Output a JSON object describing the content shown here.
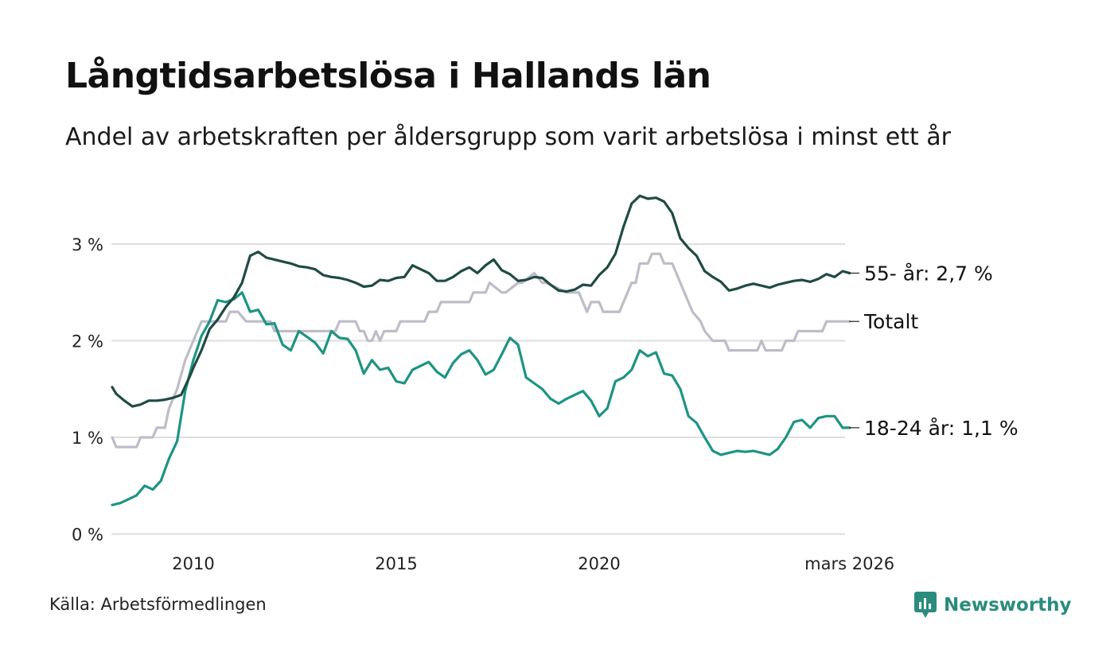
{
  "chart_data": {
    "type": "line",
    "title": "Långtidsarbetslösa i Hallands län",
    "subtitle": "Andel av arbetskraften per åldersgrupp som varit arbetslösa i minst ett år",
    "xlabel": "",
    "ylabel": "",
    "xlim": [
      2008.0,
      2026.2
    ],
    "ylim": [
      0,
      3.6
    ],
    "y_ticks": [
      {
        "value": 0,
        "label": "0 %"
      },
      {
        "value": 1,
        "label": "1 %"
      },
      {
        "value": 2,
        "label": "2 %"
      },
      {
        "value": 3,
        "label": "3 %"
      }
    ],
    "x_ticks": [
      {
        "value": 2010,
        "label": "2010"
      },
      {
        "value": 2015,
        "label": "2015"
      },
      {
        "value": 2020,
        "label": "2020"
      },
      {
        "value": 2026.17,
        "label": "mars 2026"
      }
    ],
    "grid": true,
    "series": [
      {
        "name": "55- år",
        "end_label": "55- år: 2,7 %",
        "color": "#1f4b43",
        "x": [
          2008.0,
          2008.1,
          2008.3,
          2008.5,
          2008.7,
          2008.9,
          2009.1,
          2009.3,
          2009.5,
          2009.7,
          2009.9,
          2010.0,
          2010.2,
          2010.4,
          2010.6,
          2010.8,
          2011.0,
          2011.2,
          2011.4,
          2011.6,
          2011.8,
          2012.0,
          2012.2,
          2012.4,
          2012.6,
          2012.8,
          2013.0,
          2013.2,
          2013.4,
          2013.6,
          2013.8,
          2014.0,
          2014.2,
          2014.4,
          2014.6,
          2014.8,
          2015.0,
          2015.2,
          2015.4,
          2015.6,
          2015.8,
          2016.0,
          2016.2,
          2016.4,
          2016.6,
          2016.8,
          2017.0,
          2017.2,
          2017.4,
          2017.6,
          2017.8,
          2018.0,
          2018.2,
          2018.4,
          2018.6,
          2018.8,
          2019.0,
          2019.2,
          2019.4,
          2019.6,
          2019.8,
          2020.0,
          2020.2,
          2020.4,
          2020.6,
          2020.8,
          2021.0,
          2021.2,
          2021.4,
          2021.6,
          2021.8,
          2022.0,
          2022.2,
          2022.4,
          2022.6,
          2022.8,
          2023.0,
          2023.2,
          2023.4,
          2023.6,
          2023.8,
          2024.0,
          2024.2,
          2024.4,
          2024.6,
          2024.8,
          2025.0,
          2025.2,
          2025.4,
          2025.6,
          2025.8,
          2026.0,
          2026.17
        ],
        "values": [
          1.52,
          1.45,
          1.38,
          1.32,
          1.34,
          1.38,
          1.38,
          1.39,
          1.41,
          1.44,
          1.62,
          1.72,
          1.9,
          2.12,
          2.22,
          2.35,
          2.45,
          2.6,
          2.88,
          2.92,
          2.86,
          2.84,
          2.82,
          2.8,
          2.77,
          2.76,
          2.74,
          2.68,
          2.66,
          2.65,
          2.63,
          2.6,
          2.56,
          2.57,
          2.63,
          2.62,
          2.65,
          2.66,
          2.78,
          2.74,
          2.7,
          2.62,
          2.62,
          2.66,
          2.72,
          2.76,
          2.7,
          2.78,
          2.84,
          2.73,
          2.69,
          2.62,
          2.63,
          2.66,
          2.65,
          2.58,
          2.52,
          2.51,
          2.53,
          2.58,
          2.57,
          2.68,
          2.76,
          2.9,
          3.18,
          3.42,
          3.5,
          3.47,
          3.48,
          3.44,
          3.32,
          3.06,
          2.96,
          2.88,
          2.72,
          2.66,
          2.61,
          2.52,
          2.54,
          2.57,
          2.59,
          2.57,
          2.55,
          2.58,
          2.6,
          2.62,
          2.63,
          2.61,
          2.64,
          2.69,
          2.66,
          2.72,
          2.7
        ]
      },
      {
        "name": "Totalt",
        "end_label": "Totalt",
        "color": "#bfbcc9",
        "x": [
          2008.0,
          2008.1,
          2008.6,
          2008.7,
          2009.0,
          2009.1,
          2009.3,
          2009.4,
          2009.6,
          2009.8,
          2010.0,
          2010.2,
          2010.4,
          2010.8,
          2010.9,
          2011.1,
          2011.3,
          2011.9,
          2012.0,
          2012.2,
          2013.5,
          2013.6,
          2014.0,
          2014.1,
          2014.2,
          2014.3,
          2014.4,
          2014.5,
          2014.6,
          2014.7,
          2014.8,
          2015.0,
          2015.1,
          2015.7,
          2015.8,
          2016.0,
          2016.1,
          2016.8,
          2016.9,
          2017.2,
          2017.3,
          2017.6,
          2017.7,
          2018.0,
          2018.1,
          2018.4,
          2018.6,
          2018.7,
          2019.2,
          2019.3,
          2019.5,
          2019.6,
          2019.7,
          2019.8,
          2020.0,
          2020.1,
          2020.5,
          2020.6,
          2020.8,
          2020.9,
          2021.0,
          2021.2,
          2021.3,
          2021.5,
          2021.6,
          2021.8,
          2021.9,
          2022.0,
          2022.1,
          2022.3,
          2022.5,
          2022.6,
          2022.8,
          2023.1,
          2023.2,
          2023.9,
          2024.0,
          2024.1,
          2024.2,
          2024.5,
          2024.6,
          2024.8,
          2024.9,
          2025.5,
          2025.6,
          2026.17
        ],
        "values": [
          1.0,
          0.9,
          0.9,
          1.0,
          1.0,
          1.1,
          1.1,
          1.3,
          1.5,
          1.8,
          2.0,
          2.2,
          2.2,
          2.2,
          2.3,
          2.3,
          2.2,
          2.2,
          2.1,
          2.1,
          2.1,
          2.2,
          2.2,
          2.1,
          2.1,
          2.0,
          2.0,
          2.1,
          2.0,
          2.1,
          2.1,
          2.1,
          2.2,
          2.2,
          2.3,
          2.3,
          2.4,
          2.4,
          2.5,
          2.5,
          2.6,
          2.5,
          2.5,
          2.6,
          2.6,
          2.7,
          2.6,
          2.6,
          2.5,
          2.5,
          2.5,
          2.4,
          2.3,
          2.4,
          2.4,
          2.3,
          2.3,
          2.4,
          2.6,
          2.6,
          2.8,
          2.8,
          2.9,
          2.9,
          2.8,
          2.8,
          2.7,
          2.6,
          2.5,
          2.3,
          2.2,
          2.1,
          2.0,
          2.0,
          1.9,
          1.9,
          2.0,
          1.9,
          1.9,
          1.9,
          2.0,
          2.0,
          2.1,
          2.1,
          2.2,
          2.2
        ]
      },
      {
        "name": "18-24 år",
        "end_label": "18-24 år: 1,1 %",
        "color": "#1e9483",
        "x": [
          2008.0,
          2008.2,
          2008.4,
          2008.6,
          2008.8,
          2009.0,
          2009.2,
          2009.4,
          2009.6,
          2009.8,
          2010.0,
          2010.2,
          2010.4,
          2010.6,
          2010.8,
          2011.0,
          2011.2,
          2011.4,
          2011.6,
          2011.8,
          2012.0,
          2012.2,
          2012.4,
          2012.6,
          2012.8,
          2013.0,
          2013.2,
          2013.4,
          2013.6,
          2013.8,
          2014.0,
          2014.2,
          2014.4,
          2014.6,
          2014.8,
          2015.0,
          2015.2,
          2015.4,
          2015.6,
          2015.8,
          2016.0,
          2016.2,
          2016.4,
          2016.6,
          2016.8,
          2017.0,
          2017.2,
          2017.4,
          2017.6,
          2017.8,
          2018.0,
          2018.2,
          2018.4,
          2018.6,
          2018.8,
          2019.0,
          2019.2,
          2019.4,
          2019.6,
          2019.8,
          2020.0,
          2020.2,
          2020.4,
          2020.6,
          2020.8,
          2021.0,
          2021.2,
          2021.4,
          2021.6,
          2021.8,
          2022.0,
          2022.2,
          2022.4,
          2022.6,
          2022.8,
          2023.0,
          2023.2,
          2023.4,
          2023.6,
          2023.8,
          2024.0,
          2024.2,
          2024.4,
          2024.6,
          2024.8,
          2025.0,
          2025.2,
          2025.4,
          2025.6,
          2025.8,
          2026.0,
          2026.17
        ],
        "values": [
          0.3,
          0.32,
          0.36,
          0.4,
          0.5,
          0.46,
          0.55,
          0.78,
          0.96,
          1.48,
          1.8,
          2.05,
          2.2,
          2.42,
          2.4,
          2.43,
          2.5,
          2.3,
          2.32,
          2.17,
          2.18,
          1.96,
          1.9,
          2.1,
          2.04,
          1.98,
          1.87,
          2.1,
          2.03,
          2.02,
          1.9,
          1.66,
          1.8,
          1.7,
          1.72,
          1.58,
          1.56,
          1.7,
          1.74,
          1.78,
          1.68,
          1.62,
          1.77,
          1.86,
          1.9,
          1.8,
          1.65,
          1.7,
          1.86,
          2.03,
          1.96,
          1.62,
          1.56,
          1.5,
          1.4,
          1.35,
          1.4,
          1.44,
          1.48,
          1.38,
          1.22,
          1.3,
          1.58,
          1.62,
          1.7,
          1.9,
          1.84,
          1.88,
          1.66,
          1.64,
          1.5,
          1.22,
          1.15,
          1.0,
          0.86,
          0.82,
          0.84,
          0.86,
          0.85,
          0.86,
          0.84,
          0.82,
          0.88,
          1.0,
          1.16,
          1.18,
          1.1,
          1.2,
          1.22,
          1.22,
          1.1,
          1.1
        ]
      }
    ]
  },
  "source": "Källa: Arbetsförmedlingen",
  "brand": {
    "name": "Newsworthy",
    "icon": "newsworthy-logo-icon",
    "color": "#2a8c7d"
  }
}
